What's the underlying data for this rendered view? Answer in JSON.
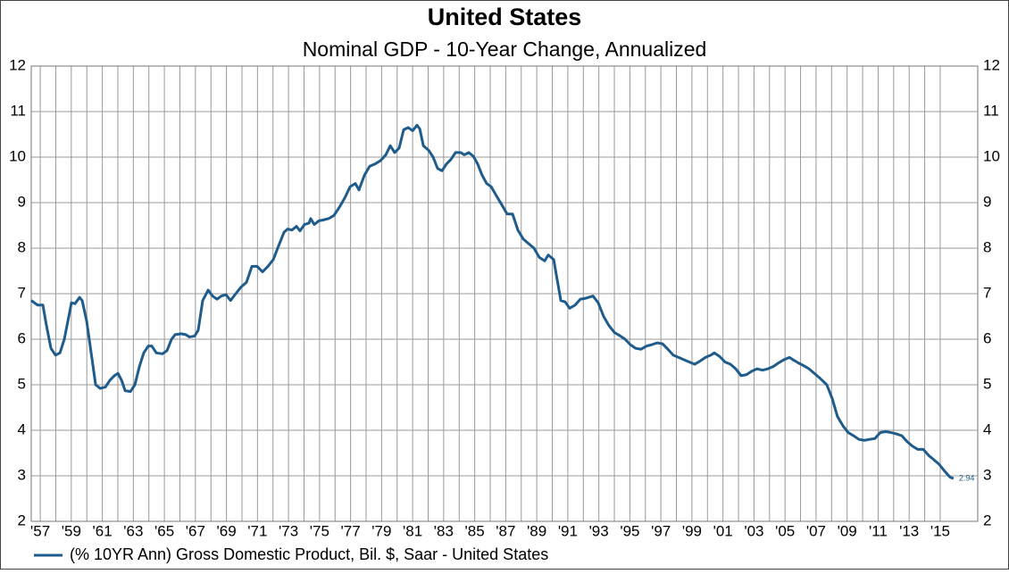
{
  "chart_data": {
    "type": "line",
    "title": "United States",
    "subtitle": "Nominal GDP - 10-Year Change, Annualized",
    "x": [
      1956.42,
      1956.83,
      1957.17,
      1957.4,
      1957.69,
      1957.98,
      1958.27,
      1958.55,
      1958.84,
      1959.01,
      1959.24,
      1959.53,
      1959.7,
      1959.99,
      1960.28,
      1960.57,
      1960.86,
      1961.2,
      1961.49,
      1961.78,
      1962.01,
      1962.24,
      1962.47,
      1962.81,
      1963.1,
      1963.39,
      1963.67,
      1963.96,
      1964.19,
      1964.48,
      1964.88,
      1965.17,
      1965.46,
      1965.69,
      1966.09,
      1966.38,
      1966.61,
      1966.95,
      1967.18,
      1967.47,
      1967.82,
      1968.1,
      1968.39,
      1968.68,
      1968.97,
      1969.26,
      1969.6,
      1969.95,
      1970.29,
      1970.64,
      1970.98,
      1971.33,
      1971.67,
      1972.02,
      1972.36,
      1972.71,
      1972.94,
      1973.23,
      1973.51,
      1973.74,
      1974.03,
      1974.32,
      1974.43,
      1974.66,
      1974.95,
      1975.24,
      1975.59,
      1975.93,
      1976.28,
      1976.62,
      1976.97,
      1977.31,
      1977.54,
      1977.89,
      1978.23,
      1978.58,
      1978.92,
      1979.27,
      1979.56,
      1979.84,
      1980.13,
      1980.42,
      1980.71,
      1981.0,
      1981.28,
      1981.46,
      1981.69,
      1982.03,
      1982.32,
      1982.61,
      1982.89,
      1983.18,
      1983.47,
      1983.76,
      1984.1,
      1984.33,
      1984.62,
      1984.91,
      1985.19,
      1985.48,
      1985.77,
      1986.06,
      1986.4,
      1986.75,
      1987.09,
      1987.44,
      1987.78,
      1988.13,
      1988.47,
      1988.82,
      1989.16,
      1989.51,
      1989.74,
      1990.09,
      1990.32,
      1990.55,
      1990.83,
      1991.12,
      1991.47,
      1991.81,
      1992.16,
      1992.62,
      1992.96,
      1993.31,
      1993.65,
      1994.0,
      1994.34,
      1994.69,
      1995.03,
      1995.38,
      1995.72,
      1996.07,
      1996.41,
      1996.76,
      1997.1,
      1997.45,
      1997.8,
      1998.14,
      1998.49,
      1998.83,
      1999.18,
      1999.52,
      1999.87,
      2000.21,
      2000.44,
      2000.79,
      2001.13,
      2001.48,
      2001.82,
      2002.17,
      2002.51,
      2002.86,
      2003.2,
      2003.55,
      2003.89,
      2004.24,
      2004.58,
      2004.93,
      2005.28,
      2005.51,
      2005.85,
      2006.2,
      2006.54,
      2006.89,
      2007.23,
      2007.69,
      2008.04,
      2008.38,
      2008.73,
      2009.07,
      2009.42,
      2009.76,
      2010.11,
      2010.45,
      2010.8,
      2011.14,
      2011.49,
      2011.83,
      2012.18,
      2012.53,
      2012.87,
      2013.22,
      2013.56,
      2013.91,
      2014.25,
      2014.6,
      2014.94,
      2015.29,
      2015.63,
      2015.86
    ],
    "series": [
      {
        "name": "(% 10YR Ann) Gross Domestic Product, Bil. $, Saar - United States",
        "color": "#1f5c8b",
        "values": [
          6.85,
          6.75,
          6.75,
          6.3,
          5.8,
          5.65,
          5.7,
          6.0,
          6.5,
          6.8,
          6.78,
          6.92,
          6.85,
          6.4,
          5.7,
          5.0,
          4.92,
          4.95,
          5.1,
          5.2,
          5.25,
          5.1,
          4.87,
          4.85,
          5.0,
          5.4,
          5.7,
          5.85,
          5.85,
          5.7,
          5.68,
          5.75,
          6.0,
          6.1,
          6.12,
          6.1,
          6.05,
          6.07,
          6.2,
          6.85,
          7.08,
          6.95,
          6.88,
          6.95,
          6.98,
          6.85,
          7.0,
          7.15,
          7.25,
          7.6,
          7.6,
          7.48,
          7.6,
          7.75,
          8.05,
          8.35,
          8.42,
          8.4,
          8.48,
          8.38,
          8.52,
          8.55,
          8.65,
          8.52,
          8.6,
          8.62,
          8.65,
          8.72,
          8.9,
          9.1,
          9.35,
          9.42,
          9.28,
          9.6,
          9.8,
          9.85,
          9.92,
          10.05,
          10.25,
          10.1,
          10.2,
          10.6,
          10.65,
          10.58,
          10.7,
          10.62,
          10.25,
          10.15,
          10.0,
          9.75,
          9.7,
          9.85,
          9.95,
          10.1,
          10.1,
          10.05,
          10.1,
          10.02,
          9.85,
          9.6,
          9.42,
          9.35,
          9.15,
          8.95,
          8.75,
          8.75,
          8.4,
          8.2,
          8.1,
          8.0,
          7.8,
          7.72,
          7.85,
          7.75,
          7.3,
          6.85,
          6.82,
          6.68,
          6.75,
          6.88,
          6.9,
          6.95,
          6.8,
          6.5,
          6.3,
          6.15,
          6.08,
          6.0,
          5.88,
          5.8,
          5.78,
          5.85,
          5.88,
          5.92,
          5.9,
          5.78,
          5.65,
          5.6,
          5.55,
          5.5,
          5.45,
          5.52,
          5.6,
          5.65,
          5.7,
          5.62,
          5.5,
          5.45,
          5.35,
          5.2,
          5.22,
          5.3,
          5.35,
          5.32,
          5.35,
          5.4,
          5.48,
          5.55,
          5.6,
          5.55,
          5.48,
          5.42,
          5.35,
          5.25,
          5.15,
          5.0,
          4.7,
          4.3,
          4.1,
          3.95,
          3.88,
          3.8,
          3.78,
          3.8,
          3.82,
          3.95,
          3.97,
          3.95,
          3.92,
          3.88,
          3.75,
          3.65,
          3.58,
          3.58,
          3.45,
          3.35,
          3.25,
          3.1,
          2.97,
          2.94
        ]
      }
    ],
    "annotations": [
      {
        "text": "2.94",
        "x": 2015.86,
        "y": 2.94
      }
    ],
    "xlim": [
      1956.42,
      2017.42
    ],
    "xticks": [
      {
        "value": 1957,
        "label": "'57"
      },
      {
        "value": 1959,
        "label": "'59"
      },
      {
        "value": 1961,
        "label": "'61"
      },
      {
        "value": 1963,
        "label": "'63"
      },
      {
        "value": 1965,
        "label": "'65"
      },
      {
        "value": 1967,
        "label": "'67"
      },
      {
        "value": 1969,
        "label": "'69"
      },
      {
        "value": 1971,
        "label": "'71"
      },
      {
        "value": 1973,
        "label": "'73"
      },
      {
        "value": 1975,
        "label": "'75"
      },
      {
        "value": 1977,
        "label": "'77"
      },
      {
        "value": 1979,
        "label": "'79"
      },
      {
        "value": 1981,
        "label": "'81"
      },
      {
        "value": 1983,
        "label": "'83"
      },
      {
        "value": 1985,
        "label": "'85"
      },
      {
        "value": 1987,
        "label": "'87"
      },
      {
        "value": 1989,
        "label": "'89"
      },
      {
        "value": 1991,
        "label": "'91"
      },
      {
        "value": 1993,
        "label": "'93"
      },
      {
        "value": 1995,
        "label": "'95"
      },
      {
        "value": 1997,
        "label": "'97"
      },
      {
        "value": 1999,
        "label": "'99"
      },
      {
        "value": 2001,
        "label": "'01"
      },
      {
        "value": 2003,
        "label": "'03"
      },
      {
        "value": 2005,
        "label": "'05"
      },
      {
        "value": 2007,
        "label": "'07"
      },
      {
        "value": 2009,
        "label": "'09"
      },
      {
        "value": 2011,
        "label": "'11"
      },
      {
        "value": 2013,
        "label": "'13"
      },
      {
        "value": 2015,
        "label": "'15"
      }
    ],
    "ylim": [
      2,
      12
    ],
    "yticks": [
      2,
      3,
      4,
      5,
      6,
      7,
      8,
      9,
      10,
      11,
      12
    ],
    "grid": true
  }
}
